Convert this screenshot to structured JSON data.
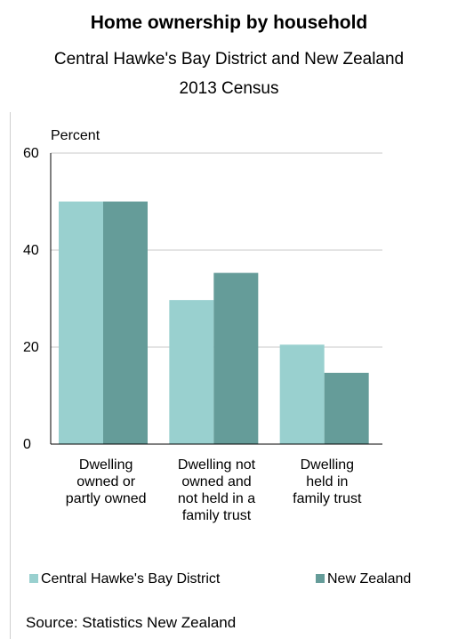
{
  "title": "Home ownership by household",
  "subtitle_lines": [
    "Central Hawke's Bay District and New Zealand",
    "2013 Census"
  ],
  "source": "Source: Statistics New Zealand",
  "colors": {
    "central_hawkes_bay": "#99d0cf",
    "new_zealand": "#659c99",
    "gridline": "#c8c8c8",
    "axis": "#000000"
  },
  "chart_data": {
    "type": "bar",
    "ylabel": "Percent",
    "ylim": [
      0,
      60
    ],
    "yticks": [
      0,
      20,
      40,
      60
    ],
    "grid": true,
    "legend_position": "bottom",
    "categories": [
      [
        "Dwelling",
        "owned or",
        "partly owned"
      ],
      [
        "Dwelling not",
        "owned and",
        "not held in a",
        "family trust"
      ],
      [
        "Dwelling",
        "held in",
        "family trust"
      ]
    ],
    "series": [
      {
        "name": "Central Hawke's Bay District",
        "values": [
          50,
          29.7,
          20.5
        ]
      },
      {
        "name": "New Zealand",
        "values": [
          50,
          35.3,
          14.7
        ]
      }
    ]
  }
}
